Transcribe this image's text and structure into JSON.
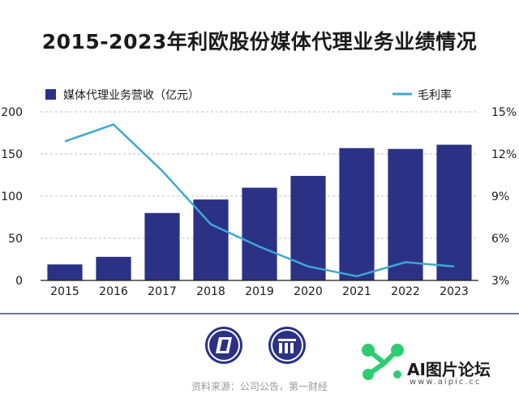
{
  "title": "2015-2023年利欧股份媒体代理业务业绩情况",
  "source": "资料来源：公司公告，第一财经",
  "colors": {
    "bar": "#2b3285",
    "line": "#3fa7d6",
    "grid": "#bfbfbf",
    "axis": "#1a1a1a",
    "divider": "#3a4a8c"
  },
  "watermark": {
    "brand": "AI图片论坛",
    "url": "www.aipic.cc"
  },
  "chart_data": {
    "type": "bar",
    "categories": [
      "2015",
      "2016",
      "2017",
      "2018",
      "2019",
      "2020",
      "2021",
      "2022",
      "2023"
    ],
    "series": [
      {
        "name": "媒体代理业务营收（亿元）",
        "type": "bar",
        "axis": "left",
        "values": [
          19,
          28,
          80,
          96,
          110,
          124,
          157,
          156,
          161
        ]
      },
      {
        "name": "毛利率",
        "type": "line",
        "axis": "right",
        "values": [
          12.9,
          14.1,
          10.8,
          7.0,
          5.4,
          4.0,
          3.3,
          4.3,
          4.0
        ]
      }
    ],
    "y_left": {
      "lim": [
        0,
        200
      ],
      "ticks": [
        "0",
        "50",
        "100",
        "150",
        "200"
      ]
    },
    "y_right": {
      "lim": [
        3,
        15
      ],
      "ticks": [
        "3%",
        "6%",
        "9%",
        "12%",
        "15%"
      ]
    },
    "grid": true,
    "legend_position": "top"
  }
}
